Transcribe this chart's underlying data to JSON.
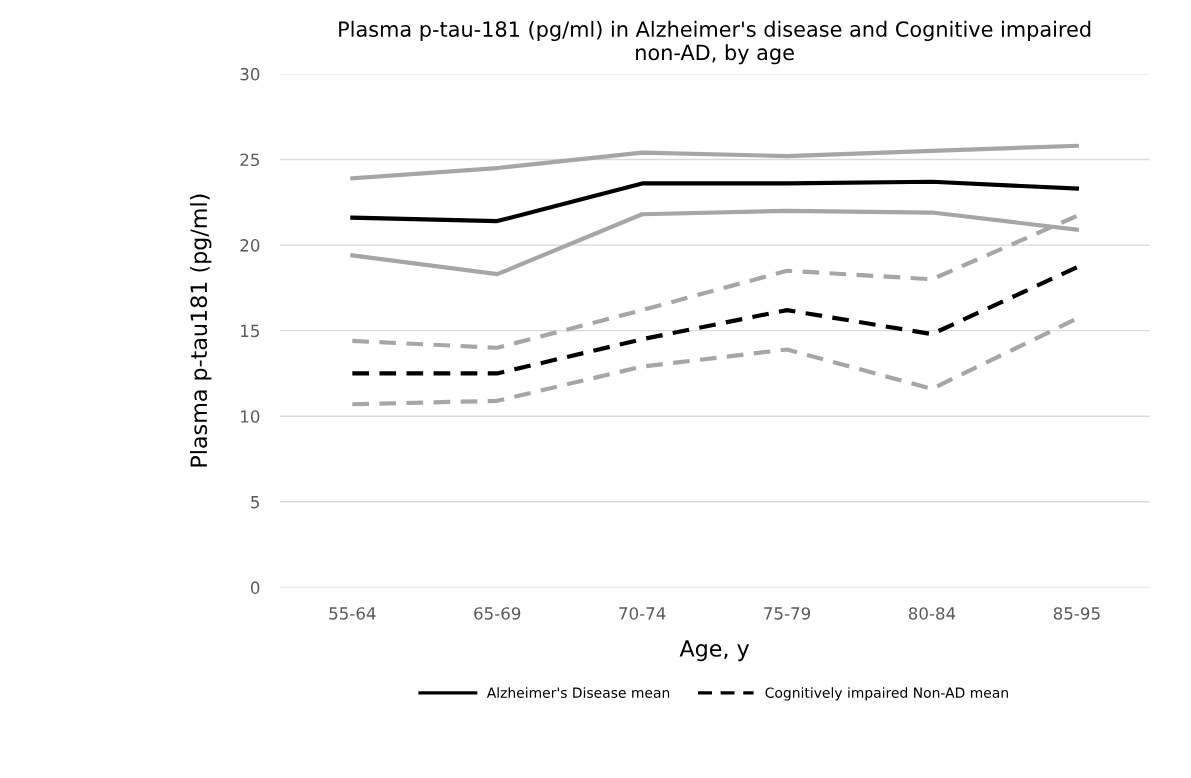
{
  "chart_data": {
    "type": "line",
    "title": "Plasma p-tau-181 (pg/ml) in Alzheimer's disease and Cognitive impaired\nnon-AD, by age",
    "xlabel": "Age, y",
    "ylabel": "Plasma p-tau181 (pg/ml)",
    "categories": [
      "55-64",
      "65-69",
      "70-74",
      "75-79",
      "80-84",
      "85-95"
    ],
    "series": [
      {
        "name": "Alzheimer's Disease mean",
        "color": "#000000",
        "line_style": "solid",
        "values": [
          21.6,
          21.4,
          23.6,
          23.6,
          23.7,
          23.3
        ]
      },
      {
        "color": "#a6a6a6",
        "line_style": "solid",
        "values": [
          23.9,
          24.5,
          25.4,
          25.2,
          25.5,
          25.8
        ]
      },
      {
        "color": "#a6a6a6",
        "line_style": "solid",
        "values": [
          19.4,
          18.3,
          21.8,
          22.0,
          21.9,
          20.9
        ]
      },
      {
        "name": "Cognitively impaired Non-AD mean",
        "color": "#000000",
        "line_style": "dashed",
        "values": [
          12.5,
          12.5,
          14.5,
          16.2,
          14.8,
          18.7
        ]
      },
      {
        "color": "#a6a6a6",
        "line_style": "dashed",
        "values": [
          14.4,
          14.0,
          16.2,
          18.5,
          18.0,
          21.7
        ]
      },
      {
        "color": "#a6a6a6",
        "line_style": "dashed",
        "values": [
          10.7,
          10.9,
          12.9,
          13.9,
          11.6,
          15.7
        ]
      }
    ],
    "ylim": [
      0,
      30
    ],
    "yticks": [
      0,
      5,
      10,
      15,
      20,
      25,
      30
    ],
    "grid": "y",
    "legend": "bottom",
    "marker": "none"
  }
}
